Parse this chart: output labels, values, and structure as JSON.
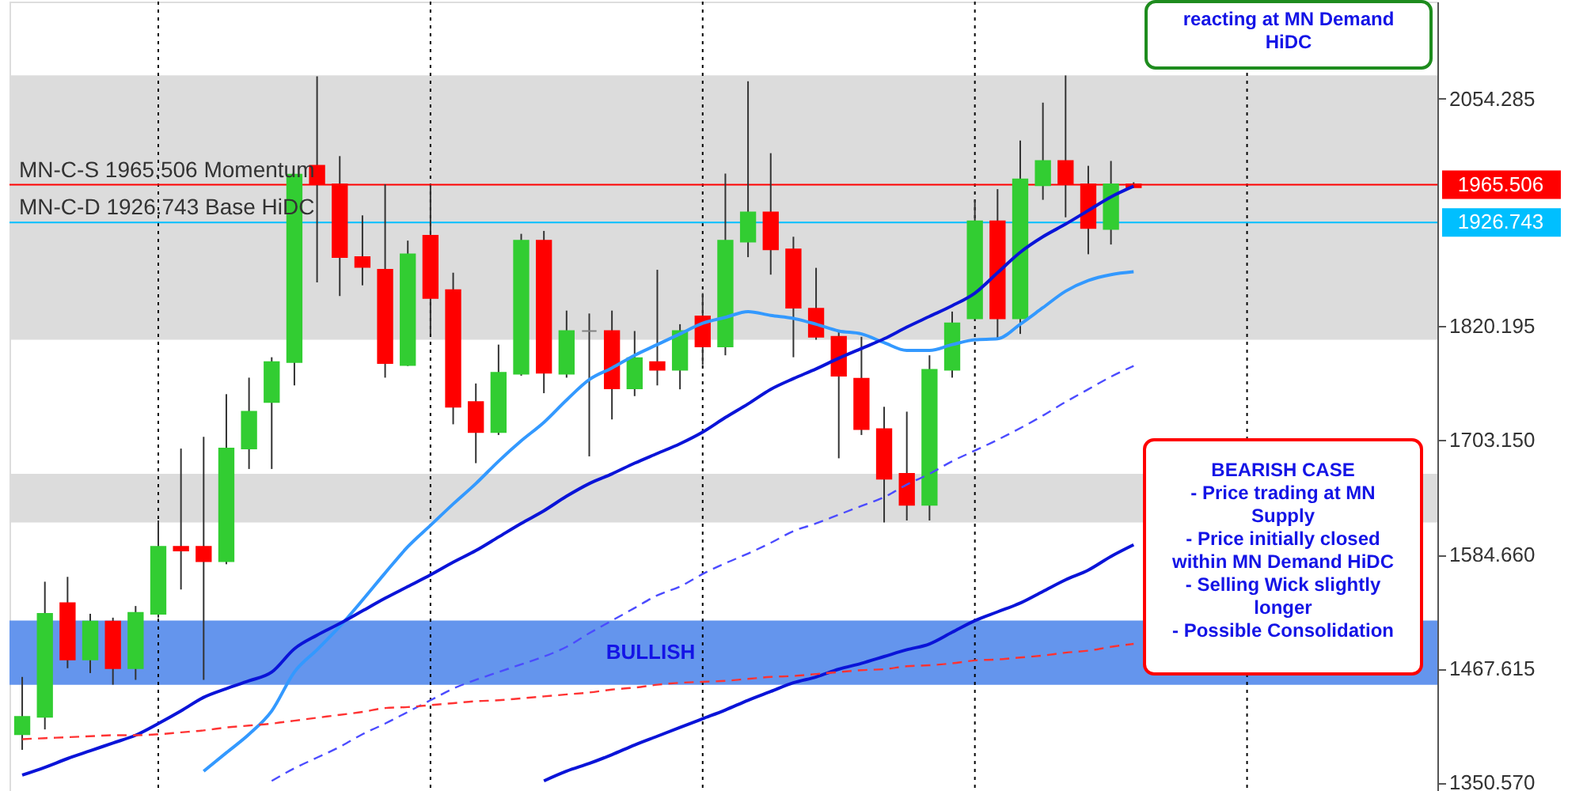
{
  "chart_data": {
    "type": "candlestick",
    "categories": [
      null,
      null,
      null,
      null,
      null,
      null,
      null,
      null,
      null,
      null,
      null,
      null,
      null,
      null,
      null,
      null,
      null,
      null,
      null,
      null,
      null,
      null,
      null,
      null,
      null,
      null,
      null,
      null,
      null,
      null,
      null,
      null,
      null,
      null,
      null,
      null,
      null,
      null,
      null,
      null,
      null,
      null,
      null,
      null,
      null,
      null,
      null,
      null,
      null,
      null
    ],
    "ohlc": [
      [
        1400,
        1459,
        1384,
        1418
      ],
      [
        1418,
        1557,
        1405,
        1524
      ],
      [
        1535,
        1562,
        1468,
        1477
      ],
      [
        1477,
        1524,
        1463,
        1516
      ],
      [
        1516,
        1520,
        1451,
        1468
      ],
      [
        1468,
        1532,
        1456,
        1525
      ],
      [
        1524,
        1620,
        1520,
        1593
      ],
      [
        1593,
        1694,
        1549,
        1589
      ],
      [
        1593,
        1706,
        1456,
        1578
      ],
      [
        1578,
        1750,
        1575,
        1694
      ],
      [
        1694,
        1767,
        1673,
        1732
      ],
      [
        1742,
        1788,
        1673,
        1783
      ],
      [
        1783,
        1976,
        1759,
        1976
      ],
      [
        1985,
        2077,
        1865,
        1966
      ],
      [
        1966,
        1995,
        1851,
        1891
      ],
      [
        1891,
        1934,
        1862,
        1881
      ],
      [
        1878,
        1966,
        1767,
        1782
      ],
      [
        1780,
        1908,
        1779,
        1894
      ],
      [
        1913,
        1965,
        1812,
        1849
      ],
      [
        1857,
        1875,
        1719,
        1737
      ],
      [
        1742,
        1761,
        1679,
        1711
      ],
      [
        1711,
        1801,
        1708,
        1772
      ],
      [
        1771,
        1915,
        1769,
        1908
      ],
      [
        1908,
        1918,
        1751,
        1772
      ],
      [
        1771,
        1836,
        1767,
        1815
      ],
      [
        1815,
        1833,
        1686,
        1815
      ],
      [
        1815,
        1836,
        1724,
        1756
      ],
      [
        1756,
        1815,
        1748,
        1787
      ],
      [
        1783,
        1878,
        1759,
        1775
      ],
      [
        1775,
        1822,
        1755,
        1815
      ],
      [
        1830,
        1854,
        1780,
        1799
      ],
      [
        1799,
        1977,
        1790,
        1908
      ],
      [
        1907,
        2072,
        1891,
        1937
      ],
      [
        1937,
        1998,
        1873,
        1899
      ],
      [
        1899,
        1912,
        1788,
        1839
      ],
      [
        1838,
        1880,
        1806,
        1809
      ],
      [
        1809,
        1815,
        1684,
        1769
      ],
      [
        1766,
        1809,
        1708,
        1714
      ],
      [
        1714,
        1737,
        1618,
        1663
      ],
      [
        1668,
        1732,
        1620,
        1636
      ],
      [
        1636,
        1790,
        1620,
        1775
      ],
      [
        1775,
        1835,
        1767,
        1823
      ],
      [
        1828,
        1950,
        1828,
        1928
      ],
      [
        1928,
        1961,
        1806,
        1828
      ],
      [
        1828,
        2011,
        1812,
        1971
      ],
      [
        1965,
        2050,
        1950,
        1990
      ],
      [
        1990,
        2078,
        1932,
        1966
      ],
      [
        1966,
        1985,
        1894,
        1921
      ],
      [
        1920,
        1990,
        1904,
        1966
      ],
      [
        1966,
        1968,
        1963,
        1963
      ]
    ],
    "colors": [
      "#32cd32",
      "#32cd32",
      "#ff0000",
      "#32cd32",
      "#ff0000",
      "#32cd32",
      "#32cd32",
      "#ff0000",
      "#ff0000",
      "#32cd32",
      "#32cd32",
      "#32cd32",
      "#32cd32",
      "#ff0000",
      "#ff0000",
      "#ff0000",
      "#ff0000",
      "#32cd32",
      "#ff0000",
      "#ff0000",
      "#ff0000",
      "#32cd32",
      "#32cd32",
      "#ff0000",
      "#32cd32",
      "#808080",
      "#ff0000",
      "#32cd32",
      "#ff0000",
      "#32cd32",
      "#ff0000",
      "#32cd32",
      "#32cd32",
      "#ff0000",
      "#ff0000",
      "#ff0000",
      "#ff0000",
      "#ff0000",
      "#ff0000",
      "#ff0000",
      "#32cd32",
      "#32cd32",
      "#32cd32",
      "#ff0000",
      "#32cd32",
      "#32cd32",
      "#ff0000",
      "#ff0000",
      "#32cd32",
      "#ff0000"
    ],
    "series": [
      {
        "type": "line",
        "color": "#3399ff",
        "line_style": "solid",
        "values": [
          null,
          null,
          null,
          null,
          null,
          null,
          null,
          null,
          1362,
          1381,
          1400,
          1424,
          1464,
          1487,
          1511,
          1538,
          1566,
          1593,
          1615,
          1637,
          1658,
          1681,
          1702,
          1721,
          1744,
          1765,
          1777,
          1790,
          1801,
          1812,
          1823,
          1829,
          1835,
          1831,
          1828,
          1822,
          1815,
          1812,
          1803,
          1795,
          1795,
          1801,
          1806,
          1807,
          1822,
          1839,
          1856,
          1867,
          1873,
          1876
        ]
      },
      {
        "type": "line",
        "color": "#0a14d8",
        "line_style": "solid",
        "values": [
          1358,
          1366,
          1375,
          1383,
          1391,
          1399,
          1411,
          1424,
          1438,
          1447,
          1455,
          1464,
          1488,
          1502,
          1514,
          1527,
          1540,
          1552,
          1564,
          1577,
          1589,
          1603,
          1617,
          1630,
          1645,
          1658,
          1668,
          1679,
          1689,
          1699,
          1711,
          1726,
          1740,
          1755,
          1766,
          1776,
          1787,
          1797,
          1807,
          1819,
          1830,
          1841,
          1854,
          1875,
          1896,
          1912,
          1925,
          1939,
          1953,
          1964
        ]
      },
      {
        "type": "line",
        "color": "#4b4bff",
        "line_style": "dashed",
        "values": [
          null,
          null,
          null,
          null,
          null,
          null,
          null,
          null,
          null,
          null,
          null,
          1352,
          1365,
          1376,
          1387,
          1400,
          1411,
          1423,
          1435,
          1447,
          1456,
          1464,
          1472,
          1480,
          1490,
          1504,
          1517,
          1530,
          1543,
          1552,
          1565,
          1576,
          1586,
          1597,
          1609,
          1617,
          1626,
          1635,
          1644,
          1657,
          1668,
          1681,
          1692,
          1703,
          1715,
          1728,
          1742,
          1755,
          1768,
          1779
        ]
      },
      {
        "type": "line",
        "color": "#0a14d8",
        "line_style": "solid",
        "values": [
          null,
          null,
          null,
          null,
          null,
          null,
          null,
          null,
          null,
          null,
          null,
          null,
          null,
          null,
          null,
          null,
          null,
          null,
          null,
          null,
          null,
          null,
          null,
          1352,
          1362,
          1370,
          1379,
          1389,
          1398,
          1407,
          1416,
          1425,
          1435,
          1444,
          1453,
          1459,
          1467,
          1473,
          1480,
          1487,
          1493,
          1505,
          1517,
          1526,
          1535,
          1547,
          1559,
          1569,
          1583,
          1595
        ]
      },
      {
        "type": "line",
        "color": "#ff3333",
        "line_style": "dashed",
        "values": [
          1395,
          1396,
          1397,
          1398,
          1399,
          1399,
          1400,
          1402,
          1404,
          1407,
          1409,
          1411,
          1414,
          1417,
          1420,
          1423,
          1427,
          1428,
          1430,
          1432,
          1434,
          1435,
          1437,
          1439,
          1441,
          1443,
          1446,
          1448,
          1451,
          1453,
          1454,
          1455,
          1457,
          1459,
          1460,
          1462,
          1464,
          1466,
          1467,
          1470,
          1471,
          1473,
          1476,
          1477,
          1479,
          1481,
          1484,
          1486,
          1490,
          1493
        ]
      }
    ],
    "ylim": [
      1340,
      2154
    ],
    "yticks": [
      2054.285,
      1820.195,
      {
        "value": 1703.15,
        "label": "1703.150"
      },
      {
        "value": 1584.66,
        "label": "1584.660"
      },
      1467.615,
      {
        "value": 1350.57,
        "label": "1350.570"
      }
    ],
    "tick_labels": "y",
    "grid": "x",
    "ref_lines": [
      {
        "axis": "y",
        "value": 1965.506,
        "label": "MN-C-S 1965.506 Momentum",
        "color": "#ff0000"
      },
      {
        "axis": "y",
        "value": 1926.743,
        "label": "MN-C-D 1926.743 Base HiDC",
        "color": "#00bfff"
      }
    ],
    "bands": [
      {
        "axis": "y",
        "from": 1451,
        "to": 1517,
        "label": "BULLISH",
        "color": "#6495ed"
      },
      {
        "axis": "y",
        "from": 1806,
        "to": 2078,
        "color": "#dcdcdc"
      },
      {
        "axis": "y",
        "from": 1618,
        "to": 1668,
        "color": "#dcdcdc"
      }
    ],
    "annotations": [
      "1965.506",
      "1926.743",
      "reacting at MN Demand\nHiDC",
      "BEARISH CASE\n\n- Price trading at MN\nSupply\n- Price initially closed\nwithin MN Demand HiDC\n- Selling Wick slightly\nlonger\n- Possible Consolidation"
    ]
  }
}
